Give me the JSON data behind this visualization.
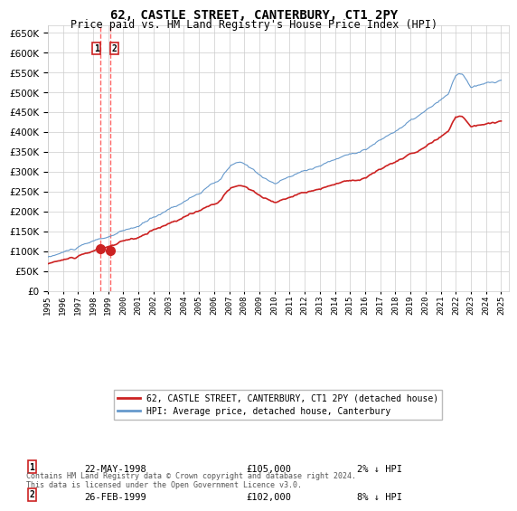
{
  "title": "62, CASTLE STREET, CANTERBURY, CT1 2PY",
  "subtitle": "Price paid vs. HM Land Registry's House Price Index (HPI)",
  "legend_line1": "62, CASTLE STREET, CANTERBURY, CT1 2PY (detached house)",
  "legend_line2": "HPI: Average price, detached house, Canterbury",
  "transaction1_date": "22-MAY-1998",
  "transaction1_price": 105000,
  "transaction1_pct": "2% ↓ HPI",
  "transaction2_date": "26-FEB-1999",
  "transaction2_price": 102000,
  "transaction2_pct": "8% ↓ HPI",
  "footer": "Contains HM Land Registry data © Crown copyright and database right 2024.\nThis data is licensed under the Open Government Licence v3.0.",
  "hpi_color": "#6699cc",
  "price_color": "#cc2222",
  "dot_color": "#cc2222",
  "vline_color": "#ff6666",
  "background_color": "#ffffff",
  "grid_color": "#cccccc",
  "ylim_min": 0,
  "ylim_max": 670000,
  "ytick_step": 50000,
  "start_year": 1995,
  "end_year": 2025
}
